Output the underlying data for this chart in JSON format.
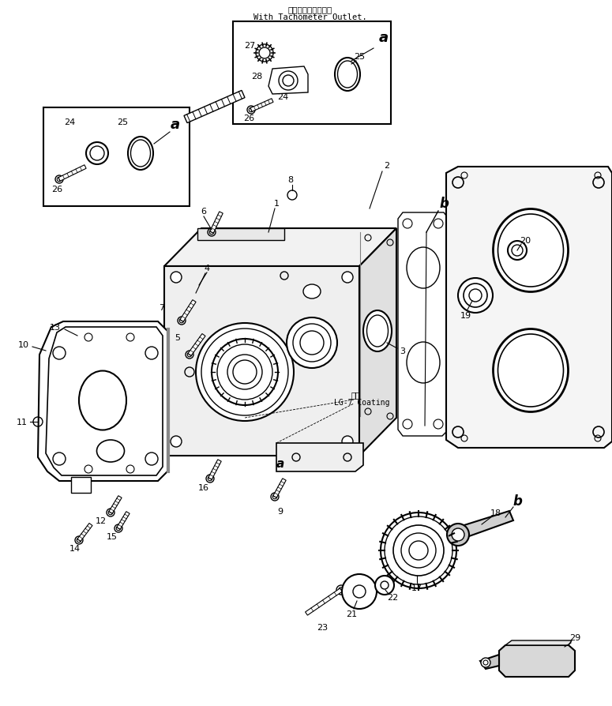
{
  "title_jp": "タコメータ取出口付",
  "title_en": "With Tachometer Outlet.",
  "annotation_coating": "LG-7 Coating",
  "annotation_coating_jp": "塴布",
  "bg_color": "#ffffff",
  "line_color": "#000000",
  "figsize": [
    7.75,
    8.95
  ],
  "dpi": 100
}
